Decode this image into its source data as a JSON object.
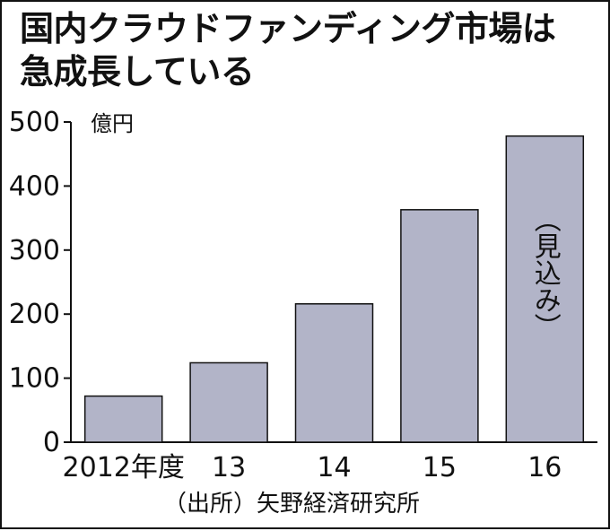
{
  "title_lines": [
    "国内クラウドファンディング市場は",
    "急成長している"
  ],
  "source": "（出所）矢野経済研究所",
  "chart_data": {
    "type": "bar",
    "title": "国内クラウドファンディング市場は急成長している",
    "xlabel": "",
    "ylabel": "",
    "y_unit": "億円",
    "categories": [
      "2012年度",
      "13",
      "14",
      "15",
      "16"
    ],
    "values": [
      72,
      124,
      216,
      363,
      478
    ],
    "annotations": [
      {
        "category": "16",
        "text": "（見込み）"
      }
    ],
    "ylim": [
      0,
      500
    ],
    "yticks": [
      0,
      100,
      200,
      300,
      400,
      500
    ],
    "grid": false,
    "legend": "none",
    "bar_color": "#b2b4c8",
    "bar_edge_color": "#111111"
  }
}
